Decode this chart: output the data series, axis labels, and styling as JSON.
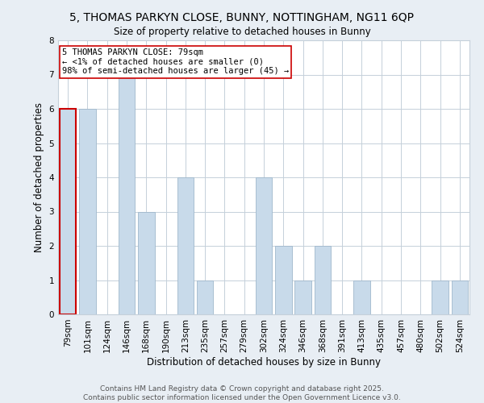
{
  "title": "5, THOMAS PARKYN CLOSE, BUNNY, NOTTINGHAM, NG11 6QP",
  "subtitle": "Size of property relative to detached houses in Bunny",
  "xlabel": "Distribution of detached houses by size in Bunny",
  "ylabel": "Number of detached properties",
  "categories": [
    "79sqm",
    "101sqm",
    "124sqm",
    "146sqm",
    "168sqm",
    "190sqm",
    "213sqm",
    "235sqm",
    "257sqm",
    "279sqm",
    "302sqm",
    "324sqm",
    "346sqm",
    "368sqm",
    "391sqm",
    "413sqm",
    "435sqm",
    "457sqm",
    "480sqm",
    "502sqm",
    "524sqm"
  ],
  "values": [
    6,
    6,
    0,
    7,
    3,
    0,
    4,
    1,
    0,
    0,
    4,
    2,
    1,
    2,
    0,
    1,
    0,
    0,
    0,
    1,
    1
  ],
  "bar_color": "#c8daea",
  "bar_edge_color": "#a0b8cc",
  "highlight_index": 0,
  "highlight_edge_color": "#cc0000",
  "annotation_text": "5 THOMAS PARKYN CLOSE: 79sqm\n← <1% of detached houses are smaller (0)\n98% of semi-detached houses are larger (45) →",
  "annotation_box_edge_color": "#cc0000",
  "ylim": [
    0,
    8
  ],
  "yticks": [
    0,
    1,
    2,
    3,
    4,
    5,
    6,
    7,
    8
  ],
  "footer_line1": "Contains HM Land Registry data © Crown copyright and database right 2025.",
  "footer_line2": "Contains public sector information licensed under the Open Government Licence v3.0.",
  "title_fontsize": 10,
  "axis_label_fontsize": 8.5,
  "tick_fontsize": 7.5,
  "annotation_fontsize": 7.5,
  "footer_fontsize": 6.5,
  "bg_color": "#e8eef4",
  "plot_bg_color": "#ffffff",
  "grid_color": "#c5d0da"
}
